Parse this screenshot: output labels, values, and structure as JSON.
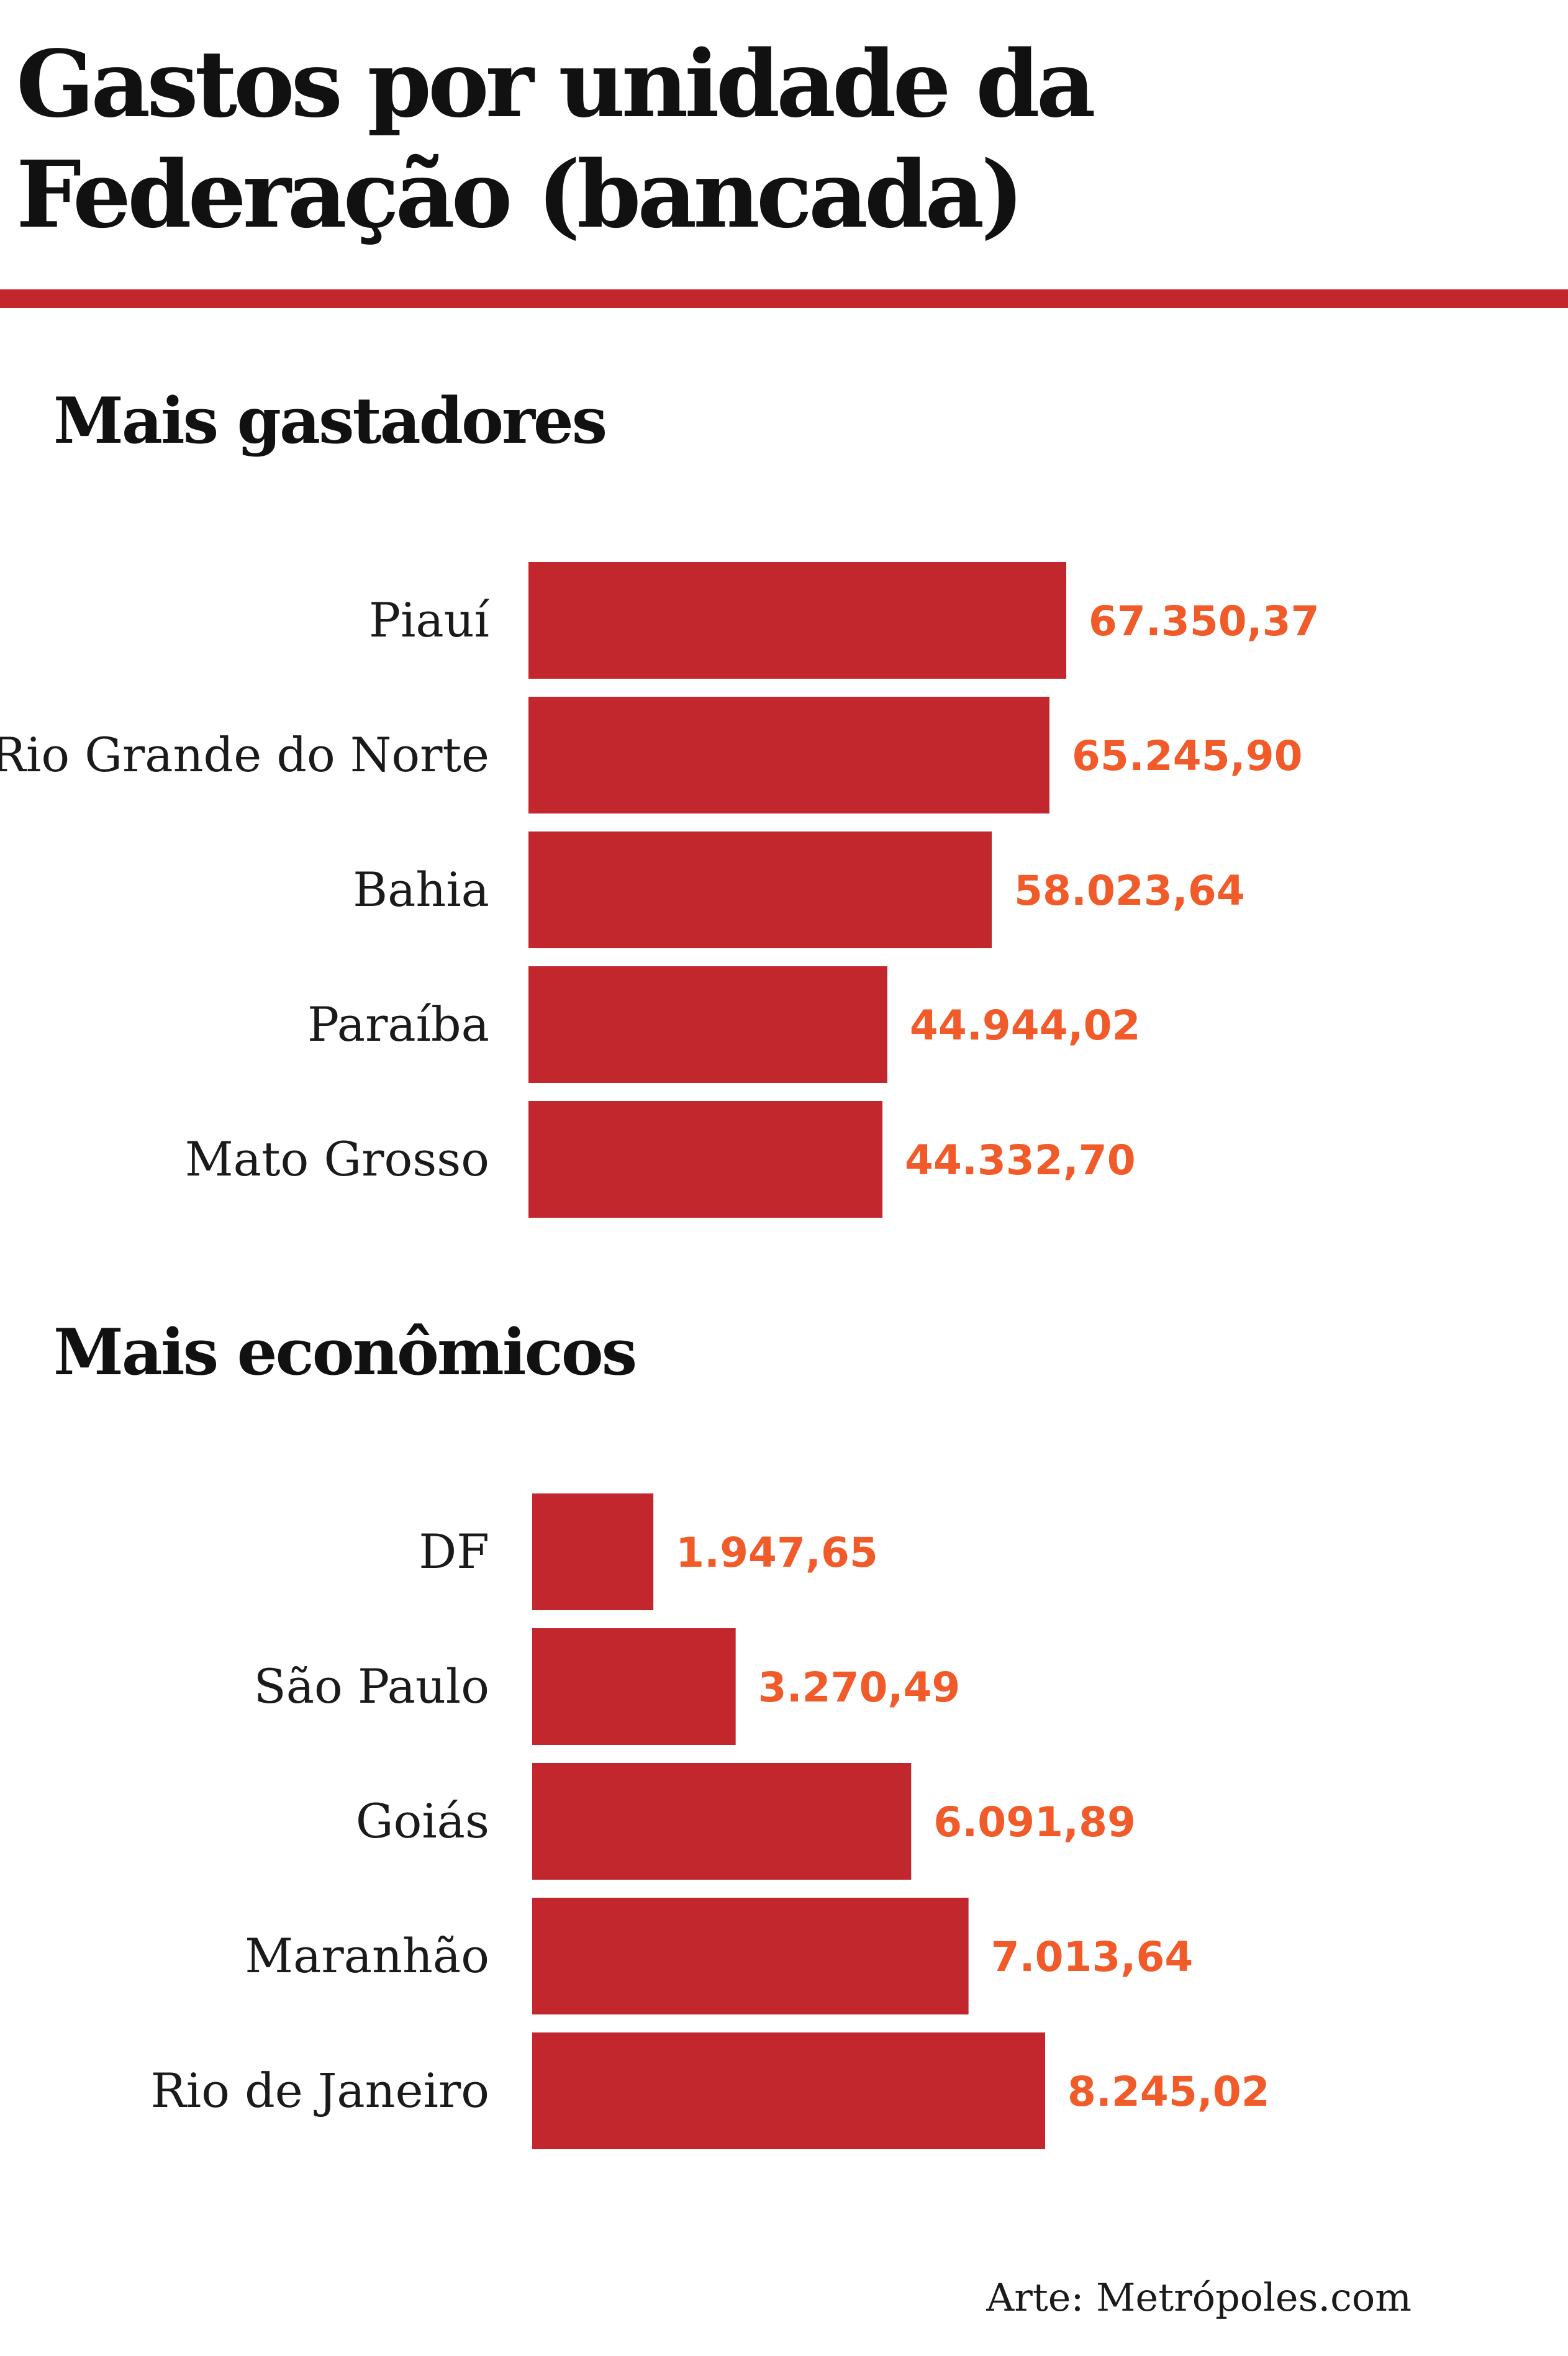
{
  "title": "Gastos por unidade da Federação (bancada)",
  "colors": {
    "bar": "#c1272d",
    "value_label": "#f15a29",
    "rule": "#c1272d",
    "text": "#111111"
  },
  "chart_data": [
    {
      "type": "bar",
      "orientation": "horizontal",
      "title": "Mais gastadores",
      "categories": [
        "Piauí",
        "Rio Grande do Norte",
        "Bahia",
        "Paraíba",
        "Mato Grosso"
      ],
      "values": [
        67350.37,
        65245.9,
        58023.64,
        44944.02,
        44332.7
      ],
      "value_labels": [
        "67.350,37",
        "65.245,90",
        "58.023,64",
        "44.944,02",
        "44.332,70"
      ],
      "xlim": [
        0,
        67350.37
      ],
      "grid": false
    },
    {
      "type": "bar",
      "orientation": "horizontal",
      "title": "Mais econômicos",
      "categories": [
        "DF",
        "São Paulo",
        "Goiás",
        "Maranhão",
        "Rio de Janeiro"
      ],
      "values": [
        1947.65,
        3270.49,
        6091.89,
        7013.64,
        8245.02
      ],
      "value_labels": [
        "1.947,65",
        "3.270,49",
        "6.091,89",
        "7.013,64",
        "8.245,02"
      ],
      "xlim": [
        0,
        8245.02
      ],
      "grid": false
    }
  ],
  "credit": "Arte: Metrópoles.com"
}
